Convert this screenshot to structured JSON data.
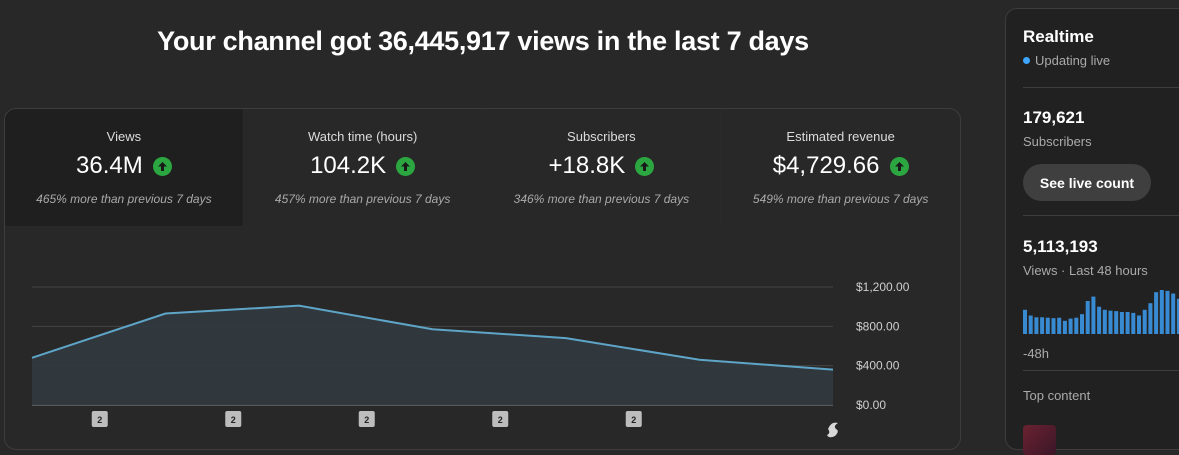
{
  "headline": "Your channel got 36,445,917 views in the last 7 days",
  "metrics": [
    {
      "label": "Views",
      "value": "36.4M",
      "comparison": "465% more than previous 7 days",
      "selected": true
    },
    {
      "label": "Watch time (hours)",
      "value": "104.2K",
      "comparison": "457% more than previous 7 days"
    },
    {
      "label": "Subscribers",
      "value": "+18.8K",
      "comparison": "346% more than previous 7 days"
    },
    {
      "label": "Estimated revenue",
      "value": "$4,729.66",
      "comparison": "549% more than previous 7 days"
    }
  ],
  "chart_data": {
    "type": "area",
    "x": [
      1,
      2,
      3,
      4,
      5,
      6,
      7
    ],
    "values": [
      480,
      930,
      1010,
      770,
      680,
      460,
      360
    ],
    "y_ticks": [
      "$0.00",
      "$400.00",
      "$800.00",
      "$1,200.00"
    ],
    "ylim": [
      0,
      1200
    ],
    "grid": true,
    "line_color": "#5ea5c8",
    "fill_color": "#313a40",
    "markers": [
      {
        "x": 2,
        "label": "2"
      },
      {
        "x": 3,
        "label": "2"
      },
      {
        "x": 4,
        "label": "2"
      },
      {
        "x": 5,
        "label": "2"
      },
      {
        "x": 6,
        "label": "2"
      }
    ]
  },
  "realtime": {
    "title": "Realtime",
    "status": "Updating live",
    "subscribers_value": "179,621",
    "subscribers_label": "Subscribers",
    "live_count_button": "See live count",
    "views_value": "5,113,193",
    "views_label": "Views · Last 48 hours",
    "mini_bars": [
      0.55,
      0.42,
      0.38,
      0.38,
      0.37,
      0.36,
      0.37,
      0.3,
      0.35,
      0.37,
      0.45,
      0.75,
      0.85,
      0.62,
      0.55,
      0.53,
      0.52,
      0.5,
      0.5,
      0.48,
      0.42,
      0.55,
      0.7,
      0.95,
      1.0,
      0.98,
      0.92,
      0.8,
      0.72
    ],
    "mini_axis_label": "-48h",
    "top_content_label": "Top content"
  }
}
